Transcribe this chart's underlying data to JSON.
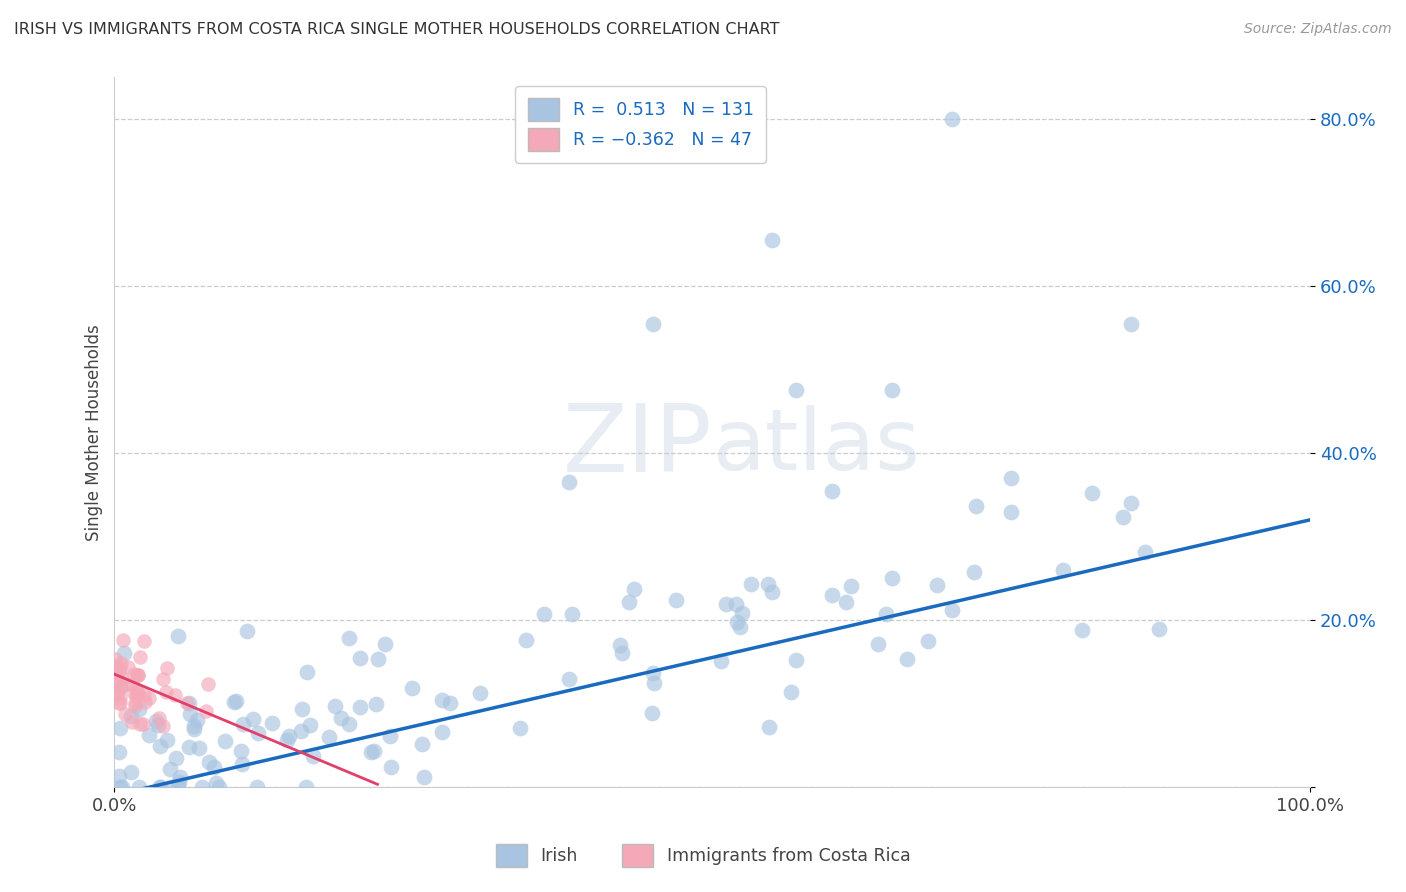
{
  "title": "IRISH VS IMMIGRANTS FROM COSTA RICA SINGLE MOTHER HOUSEHOLDS CORRELATION CHART",
  "source": "Source: ZipAtlas.com",
  "ylabel": "Single Mother Households",
  "legend_irish": "Irish",
  "legend_cr": "Immigrants from Costa Rica",
  "r_irish": 0.513,
  "n_irish": 131,
  "r_cr": -0.362,
  "n_cr": 47,
  "irish_color": "#a8c4e0",
  "cr_color": "#f4a8b8",
  "irish_line_color": "#1a6bbf",
  "cr_line_color": "#e0406a",
  "background_color": "#ffffff",
  "grid_color": "#cccccc",
  "watermark_zip": "ZIP",
  "watermark_atlas": "atlas",
  "ylim": [
    0.0,
    0.85
  ],
  "xlim": [
    0.0,
    1.0
  ],
  "ytick_vals": [
    0.0,
    0.2,
    0.4,
    0.6,
    0.8
  ],
  "ytick_labels": [
    "",
    "20.0%",
    "40.0%",
    "60.0%",
    "80.0%"
  ]
}
